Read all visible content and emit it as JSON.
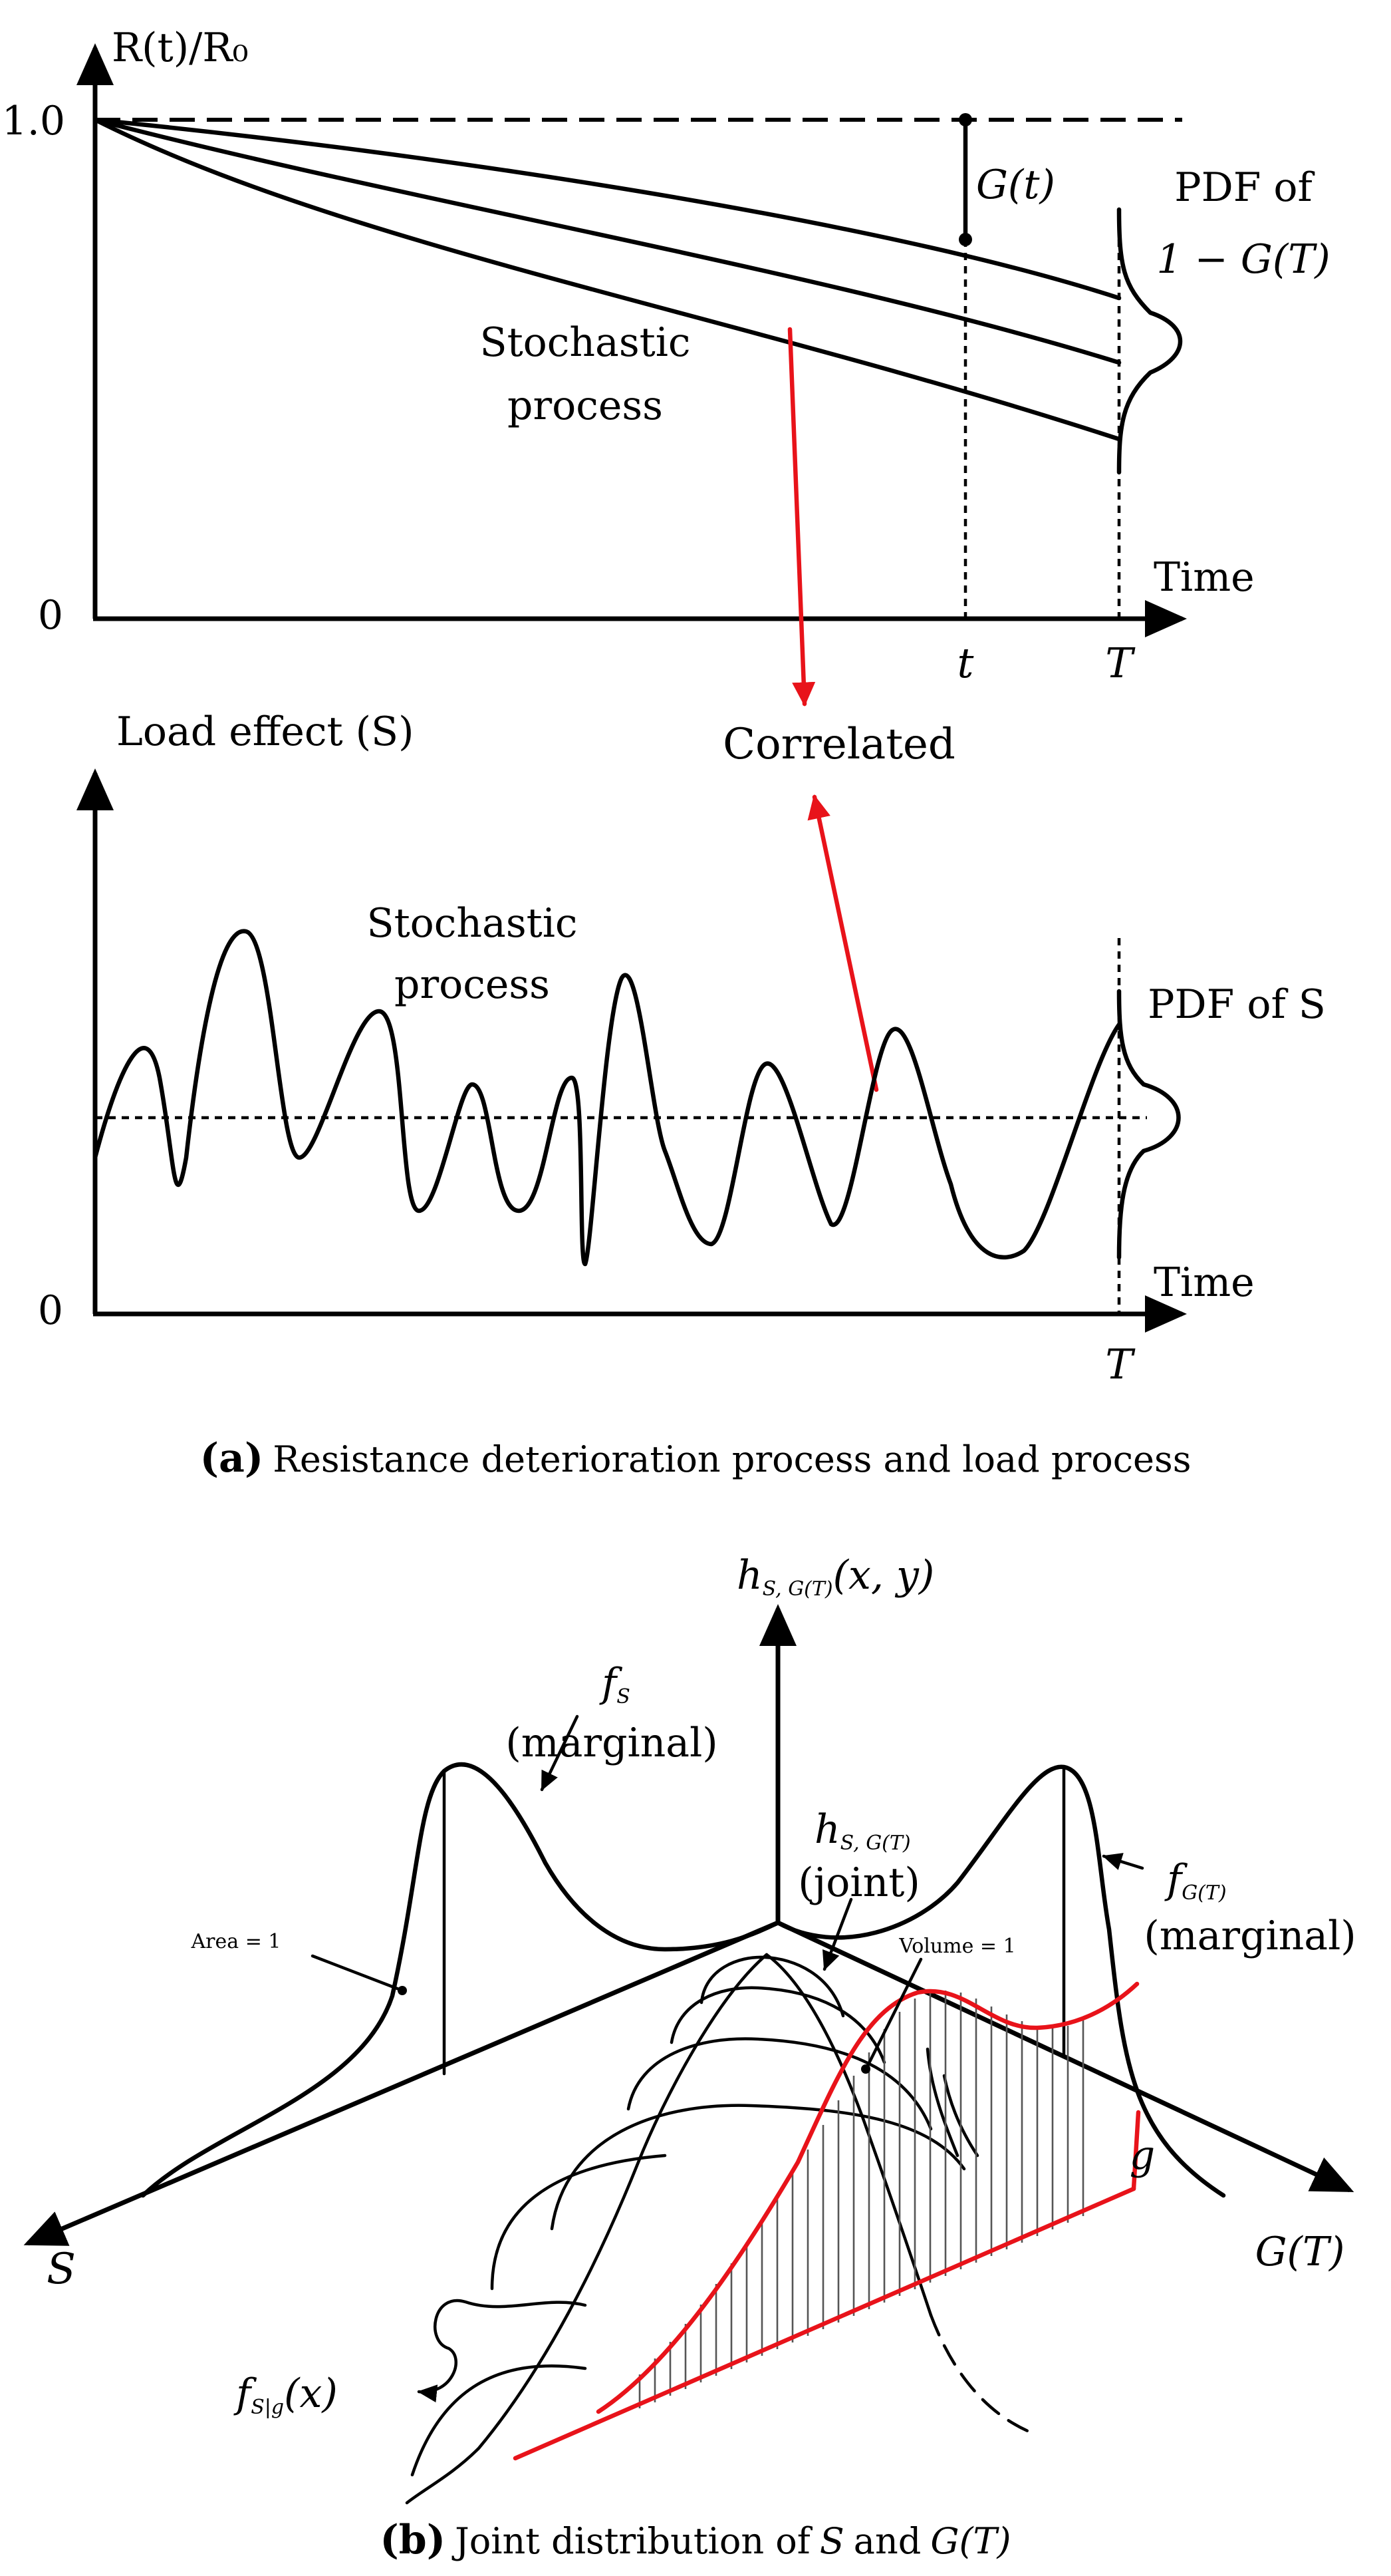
{
  "panel_a": {
    "top": {
      "y_axis_label": "R(t)/R₀",
      "y_tick_high": "1.0",
      "y_tick_low": "0",
      "x_axis_label": "Time",
      "x_tick_t": "t",
      "x_tick_T": "T",
      "gap_label": "G(t)",
      "pdf_label_line1": "PDF of",
      "pdf_label_line2": "1 − G(T)",
      "process_line1": "Stochastic",
      "process_line2": "process"
    },
    "correlated_label": "Correlated",
    "bottom": {
      "y_axis_label": "Load effect (S)",
      "y_tick_low": "0",
      "x_axis_label": "Time",
      "x_tick_T": "T",
      "pdf_label": "PDF of S",
      "process_line1": "Stochastic",
      "process_line2": "process"
    },
    "caption_letter": "(a)",
    "caption_text": "Resistance deterioration process and load process"
  },
  "panel_b": {
    "z_axis_label": "h",
    "z_axis_label_sub": "S, G(T)",
    "z_axis_label_args": "(x, y)",
    "s_axis_label": "S",
    "g_axis_label": "G(T)",
    "g_point_label": "g",
    "fs_label": "f",
    "fs_label_sub": "S",
    "fs_note": "(marginal)",
    "joint_label": "h",
    "joint_label_sub": "S, G(T)",
    "joint_note": "(joint)",
    "fg_label": "f",
    "fg_label_sub": "G(T)",
    "fg_note": "(marginal)",
    "area_note": "Area = 1",
    "volume_note": "Volume = 1",
    "conditional_label": "f",
    "conditional_label_sub": "S|g",
    "conditional_label_args": "(x)",
    "caption_letter": "(b)",
    "caption_text_1": "Joint distribution of",
    "caption_var_s": "S",
    "caption_text_2": "and",
    "caption_var_g": "G(T)"
  },
  "colors": {
    "ink": "#000000",
    "highlight": "#e8131a"
  }
}
